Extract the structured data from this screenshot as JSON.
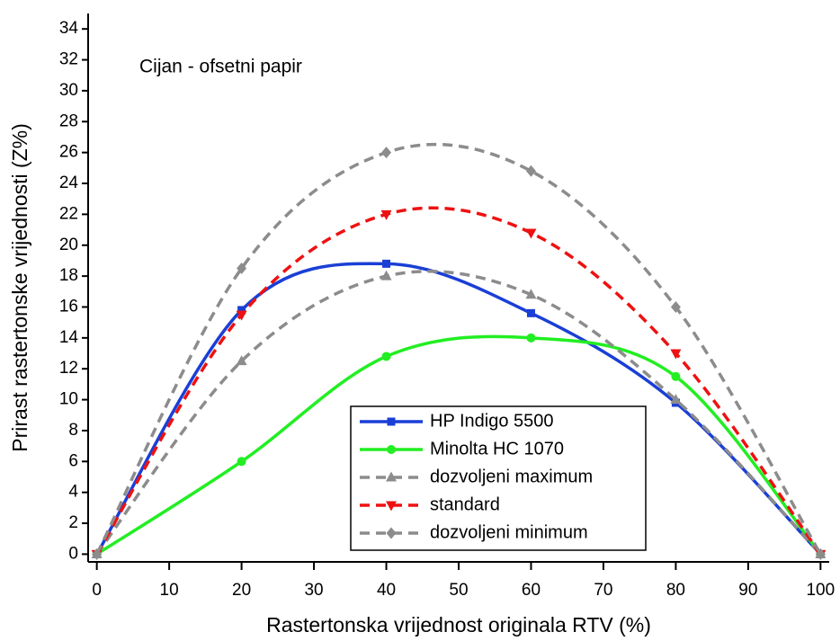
{
  "chart_data": {
    "type": "line",
    "title": "Cijan - ofsetni papir",
    "x_label": "Rastertonska vrijednost originala RTV (%)",
    "y_label": "Prirast rastertonske vrijednosti (Z%)",
    "x": [
      0,
      20,
      40,
      60,
      80,
      100
    ],
    "xlim": [
      -1.2,
      101.2
    ],
    "xticks": [
      0,
      10,
      20,
      30,
      40,
      50,
      60,
      70,
      80,
      90,
      100
    ],
    "ylim": [
      -0.5,
      35
    ],
    "yticks": [
      0,
      2,
      4,
      6,
      8,
      10,
      12,
      14,
      16,
      18,
      20,
      22,
      24,
      26,
      28,
      30,
      32,
      34
    ],
    "grid": false,
    "legend": "lower-right",
    "series": [
      {
        "name": "HP Indigo 5500",
        "color": "#1a3fd6",
        "marker": "square",
        "dashed": false,
        "values": [
          0,
          15.8,
          18.8,
          15.6,
          9.8,
          0
        ]
      },
      {
        "name": "Minolta HC 1070",
        "color": "#22ee22",
        "marker": "circle",
        "dashed": false,
        "values": [
          0,
          6,
          12.8,
          14,
          11.5,
          0
        ]
      },
      {
        "name": "dozvoljeni maximum",
        "color": "#8c8c8c",
        "marker": "triangle-up",
        "dashed": true,
        "values": [
          0,
          12.5,
          18,
          16.8,
          10,
          0
        ]
      },
      {
        "name": "standard",
        "color": "#ee1111",
        "marker": "triangle-down",
        "dashed": true,
        "values": [
          0,
          15.5,
          22,
          20.8,
          13,
          0
        ]
      },
      {
        "name": "dozvoljeni minimum",
        "color": "#8c8c8c",
        "marker": "diamond",
        "dashed": true,
        "values": [
          0,
          18.5,
          26,
          24.8,
          16,
          0
        ]
      }
    ]
  }
}
